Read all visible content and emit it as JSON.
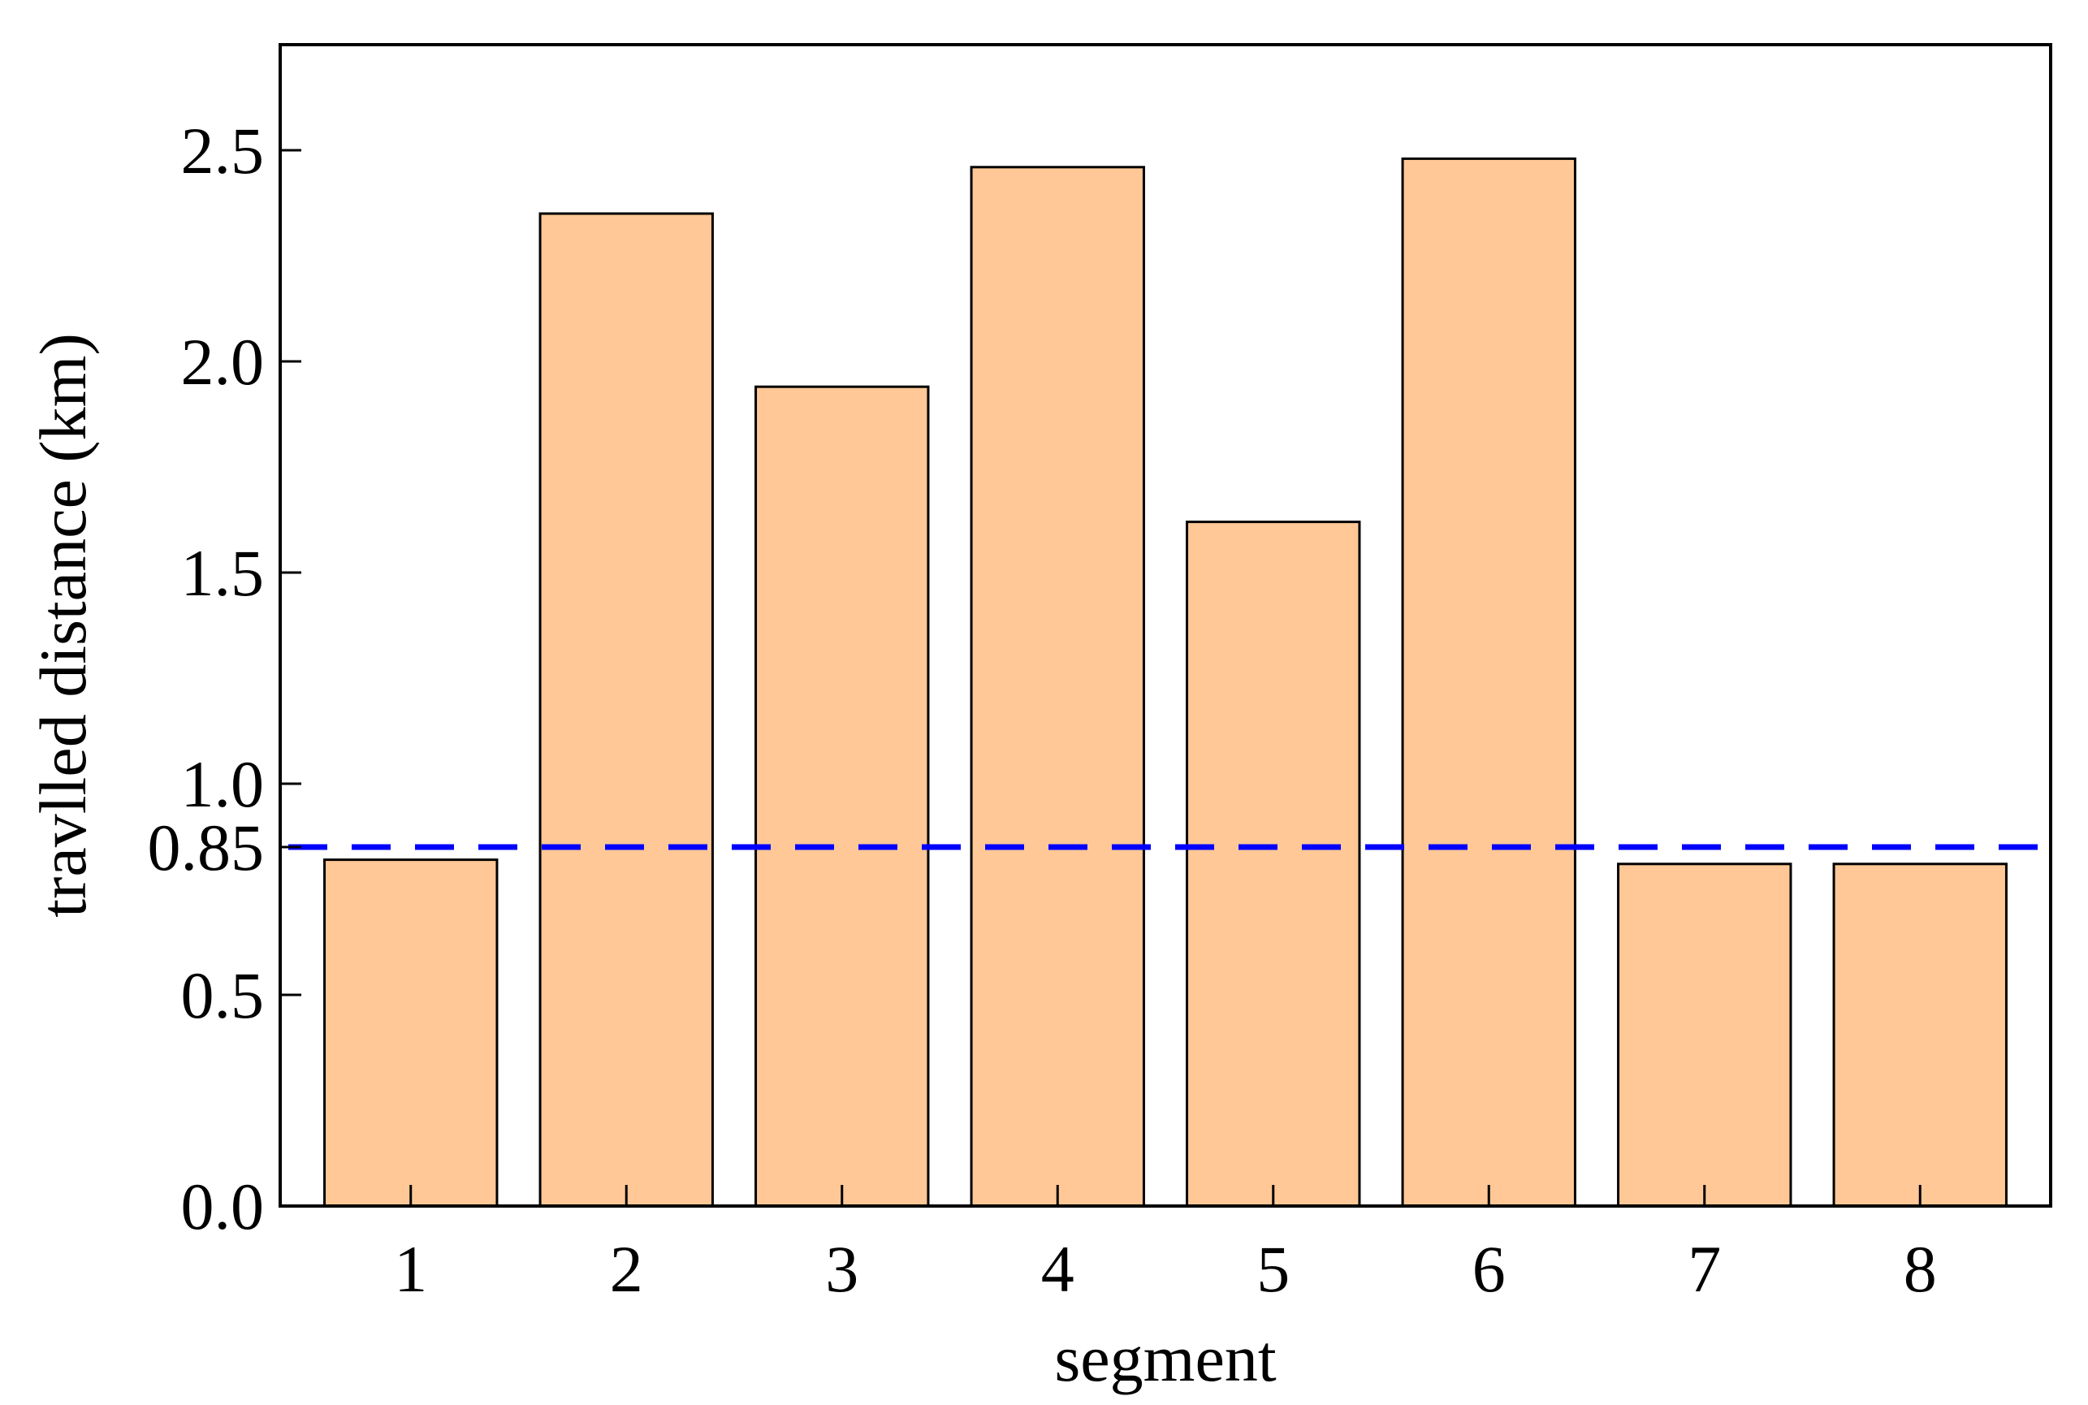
{
  "chart_data": {
    "type": "bar",
    "title": "",
    "xlabel": "segment",
    "ylabel": "travlled distance (km)",
    "categories": [
      "1",
      "2",
      "3",
      "4",
      "5",
      "6",
      "7",
      "8"
    ],
    "values": [
      0.82,
      2.35,
      1.94,
      2.46,
      1.62,
      2.48,
      0.81,
      0.81
    ],
    "ylim": [
      0,
      2.75
    ],
    "yticks": [
      0.0,
      0.5,
      0.85,
      1.0,
      1.5,
      2.0,
      2.5
    ],
    "ytick_labels": [
      "0.0",
      "0.5",
      "0.85",
      "1.0",
      "1.5",
      "2.0",
      "2.5"
    ],
    "reference_line": {
      "y": 0.85,
      "style": "dashed",
      "color": "#0000ff"
    },
    "grid": false,
    "legend": "none",
    "bar_fill": "#ffc896",
    "bar_edge": "#000000"
  }
}
